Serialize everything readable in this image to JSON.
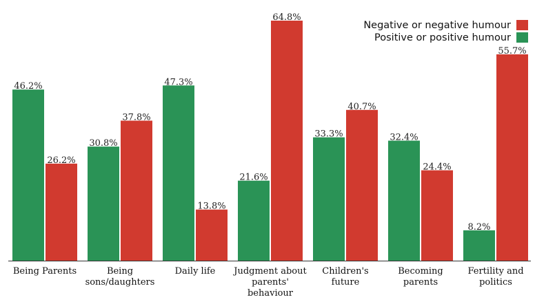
{
  "chart_data": {
    "type": "bar",
    "title": "",
    "xlabel": "",
    "ylabel": "",
    "ylim": [
      0,
      70
    ],
    "grid": false,
    "legend_position": "top-right",
    "categories": [
      [
        "Being Parents"
      ],
      [
        "Being",
        "sons/daughters"
      ],
      [
        "Daily life"
      ],
      [
        "Judgment about",
        "parents'",
        "behaviour"
      ],
      [
        "Children's",
        "future"
      ],
      [
        "Becoming",
        "parents"
      ],
      [
        "Fertility and",
        "politics"
      ]
    ],
    "series": [
      {
        "name": "Positive or positive humour",
        "color": "#2a9356",
        "values": [
          46.2,
          30.8,
          47.3,
          21.6,
          33.3,
          32.4,
          8.2
        ],
        "labels": [
          "46.2%",
          "30.8%",
          "47.3%",
          "21.6%",
          "33.3%",
          "32.4%",
          "8.2%"
        ]
      },
      {
        "name": "Negative or negative humour",
        "color": "#d13a2f",
        "values": [
          26.2,
          37.8,
          13.8,
          64.8,
          40.7,
          24.4,
          55.7
        ],
        "labels": [
          "26.2%",
          "37.8%",
          "13.8%",
          "64.8%",
          "40.7%",
          "24.4%",
          "55.7%"
        ]
      }
    ],
    "legend": [
      {
        "label": "Negative or negative humour",
        "color": "#d13a2f"
      },
      {
        "label": "Positive or positive humour",
        "color": "#2a9356"
      }
    ]
  }
}
